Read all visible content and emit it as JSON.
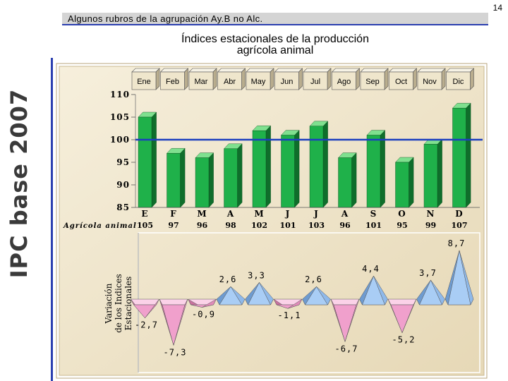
{
  "page_number": "14",
  "header": {
    "title": "Algunos rubros de la agrupación Ay.B no Alc."
  },
  "side_label": "IPC base 2007",
  "chart_title": {
    "line1": "Índices estacionales de la producción",
    "line2": "agrícola animal"
  },
  "colors": {
    "bar_front": "#1fb14a",
    "bar_top": "#7fe08f",
    "bar_side": "#0f6e2b",
    "reference_line": "#1c3fbf",
    "panel_bg": "#efe4c9",
    "pyramid_positive": "#a9cdf5",
    "pyramid_negative": "#f0a0cc"
  },
  "chart_data": [
    {
      "type": "bar",
      "categories": [
        "Ene",
        "Feb",
        "Mar",
        "Abr",
        "May",
        "Jun",
        "Jul",
        "Ago",
        "Sep",
        "Oct",
        "Nov",
        "Dic"
      ],
      "initials": [
        "E",
        "F",
        "M",
        "A",
        "M",
        "J",
        "J",
        "A",
        "S",
        "O",
        "N",
        "D"
      ],
      "row_label": "Agrícola animal",
      "series": [
        {
          "name": "Agrícola animal",
          "values": [
            105,
            97,
            96,
            98,
            102,
            101,
            103,
            96,
            101,
            95,
            99,
            107
          ]
        }
      ],
      "y_ticks": [
        85,
        90,
        95,
        100,
        105,
        110
      ],
      "ylim": [
        85,
        110
      ],
      "reference_line": 100
    },
    {
      "type": "bar",
      "ylabel": "Variación de los Indices Estacionales",
      "values": [
        -2.7,
        -7.3,
        -0.9,
        2.6,
        3.3,
        -1.1,
        2.6,
        -6.7,
        4.4,
        -5.2,
        3.7,
        8.7
      ],
      "labels": [
        "-2,7",
        "-7,3",
        "-0,9",
        "2,6",
        "3,3",
        "-1,1",
        "2,6",
        "-6,7",
        "4,4",
        "-5,2",
        "3,7",
        "8,7"
      ]
    }
  ]
}
